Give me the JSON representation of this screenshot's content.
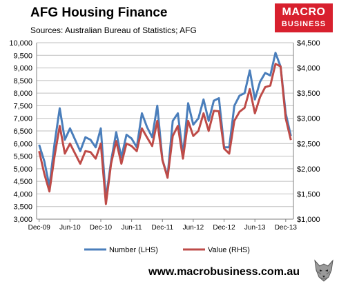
{
  "header": {
    "title": "AFG Housing Finance",
    "subtitle": "Sources: Australian Bureau of Statistics; AFG"
  },
  "logo": {
    "line1": "MACRO",
    "line2": "BUSINESS"
  },
  "footer": {
    "url": "www.macrobusiness.com.au"
  },
  "colors": {
    "number": "#4a7ebb",
    "value": "#be4b48",
    "grid": "#bfbfbf"
  },
  "chart_data": {
    "type": "line",
    "x": [
      "Dec-09",
      "Jan-10",
      "Feb-10",
      "Mar-10",
      "Apr-10",
      "May-10",
      "Jun-10",
      "Jul-10",
      "Aug-10",
      "Sep-10",
      "Oct-10",
      "Nov-10",
      "Dec-10",
      "Jan-11",
      "Feb-11",
      "Mar-11",
      "Apr-11",
      "May-11",
      "Jun-11",
      "Jul-11",
      "Aug-11",
      "Sep-11",
      "Oct-11",
      "Nov-11",
      "Dec-11",
      "Jan-12",
      "Feb-12",
      "Mar-12",
      "Apr-12",
      "May-12",
      "Jun-12",
      "Jul-12",
      "Aug-12",
      "Sep-12",
      "Oct-12",
      "Nov-12",
      "Dec-12",
      "Jan-13",
      "Feb-13",
      "Mar-13",
      "Apr-13",
      "May-13",
      "Jun-13",
      "Jul-13",
      "Aug-13",
      "Sep-13",
      "Oct-13",
      "Nov-13",
      "Dec-13",
      "Jan-14"
    ],
    "x_tick_labels": [
      "Dec-09",
      "Jun-10",
      "Dec-10",
      "Jun-11",
      "Dec-11",
      "Jun-12",
      "Dec-12",
      "Jun-13",
      "Dec-13"
    ],
    "x_tick_indices": [
      0,
      6,
      12,
      18,
      24,
      30,
      36,
      42,
      48
    ],
    "series": [
      {
        "name": "Number (LHS)",
        "axis": "left",
        "color": "#4a7ebb",
        "values": [
          5950,
          5300,
          4300,
          6000,
          7400,
          6150,
          6600,
          6150,
          5700,
          6250,
          6150,
          5850,
          6600,
          3800,
          5300,
          6450,
          5450,
          6350,
          6200,
          5850,
          7200,
          6650,
          6250,
          7500,
          5350,
          4700,
          6900,
          7200,
          5550,
          7600,
          6750,
          7000,
          7750,
          6900,
          7700,
          7800,
          5850,
          5850,
          7500,
          7900,
          8000,
          8900,
          7750,
          8450,
          8800,
          8700,
          9600,
          9050,
          7200,
          6300
        ]
      },
      {
        "name": "Value (RHS)",
        "axis": "right",
        "color": "#be4b48",
        "values": [
          2350,
          1900,
          1550,
          2250,
          2850,
          2300,
          2500,
          2300,
          2100,
          2350,
          2330,
          2200,
          2500,
          1300,
          2100,
          2550,
          2100,
          2500,
          2450,
          2350,
          2800,
          2620,
          2450,
          2950,
          2170,
          1820,
          2650,
          2850,
          2200,
          2950,
          2650,
          2750,
          3100,
          2750,
          3150,
          3140,
          2400,
          2300,
          2950,
          3130,
          3210,
          3580,
          3100,
          3420,
          3620,
          3650,
          4080,
          4030,
          3000,
          2570
        ]
      }
    ],
    "y_left": {
      "min": 3000,
      "max": 10000,
      "step": 500,
      "tick_labels": [
        "3,000",
        "3,500",
        "4,000",
        "4,500",
        "5,000",
        "5,500",
        "6,000",
        "6,500",
        "7,000",
        "7,500",
        "8,000",
        "8,500",
        "9,000",
        "9,500",
        "10,000"
      ]
    },
    "y_right": {
      "min": 1000,
      "max": 4500,
      "step": 500,
      "tick_labels": [
        "$1,000",
        "$1,500",
        "$2,000",
        "$2,500",
        "$3,000",
        "$3,500",
        "$4,000",
        "$4,500"
      ]
    },
    "grid": true,
    "legend_position": "bottom",
    "legend": [
      "Number (LHS)",
      "Value (RHS)"
    ]
  }
}
